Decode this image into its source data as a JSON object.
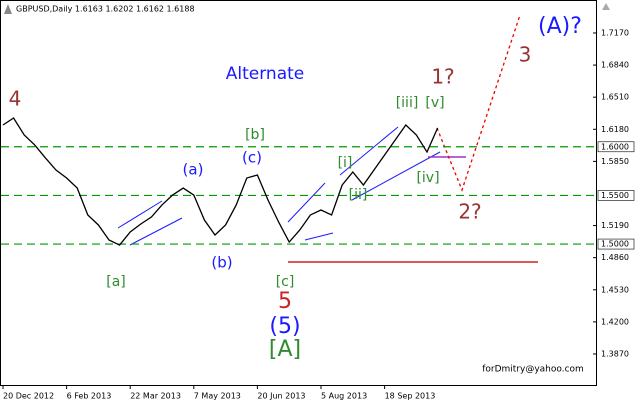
{
  "chart_data": {
    "type": "line",
    "title": "GBPUSD,Daily  1.6163 1.6202 1.6162 1.6188",
    "color": "#000000",
    "categories": [
      "20 Dec 2012",
      null,
      null,
      null,
      null,
      null,
      "6 Feb 2013",
      null,
      null,
      null,
      null,
      null,
      "22 Mar 2013",
      null,
      null,
      null,
      null,
      null,
      "7 May 2013",
      null,
      null,
      null,
      null,
      null,
      "20 Jun 2013",
      null,
      null,
      null,
      null,
      null,
      "5 Aug 2013",
      null,
      null,
      null,
      null,
      null,
      "18 Sep 2013",
      null,
      null,
      null,
      null,
      null
    ],
    "values": [
      1.6224,
      1.6296,
      1.6121,
      1.6018,
      1.5885,
      1.5761,
      1.5679,
      1.5576,
      1.5299,
      1.5196,
      1.5042,
      1.499,
      1.5124,
      1.5206,
      1.5278,
      1.5402,
      1.5504,
      1.5576,
      1.5504,
      1.5247,
      1.5093,
      1.5196,
      1.5402,
      1.5679,
      1.571,
      1.5453,
      1.5227,
      1.5021,
      1.5145,
      1.5299,
      1.535,
      1.5299,
      1.5607,
      1.5741,
      1.5607,
      1.5761,
      1.5916,
      1.607,
      1.6224,
      1.6121,
      1.5946,
      1.6193
    ],
    "ylim": [
      1.3551,
      1.7509
    ],
    "yticks": [
      {
        "value": 1.717,
        "label": "1.7170"
      },
      {
        "value": 1.684,
        "label": "1.6840"
      },
      {
        "value": 1.651,
        "label": "1.6510"
      },
      {
        "value": 1.618,
        "label": "1.6180"
      },
      {
        "value": 1.585,
        "label": "1.5850"
      },
      {
        "value": 1.519,
        "label": "1.5190"
      },
      {
        "value": 1.486,
        "label": "1.4860"
      },
      {
        "value": 1.453,
        "label": "1.4530"
      },
      {
        "value": 1.42,
        "label": "1.4200"
      },
      {
        "value": 1.387,
        "label": "1.3870"
      }
    ],
    "levels": [
      {
        "value": 1.6,
        "label": "1.6000"
      },
      {
        "value": 1.55,
        "label": "1.5500"
      },
      {
        "value": 1.5,
        "label": "1.5000"
      }
    ],
    "level_color": "#009900",
    "support": 1.4816,
    "annotations": [
      {
        "text": "4",
        "color": "#993333"
      },
      {
        "text": "(a)",
        "color": "#1a1aff"
      },
      {
        "text": "(b)",
        "color": "#1a1aff"
      },
      {
        "text": "(c)",
        "color": "#1a1aff"
      },
      {
        "text": "[a]",
        "color": "#2e8b2e"
      },
      {
        "text": "[b]",
        "color": "#2e8b2e"
      },
      {
        "text": "[c]",
        "color": "#2e8b2e"
      },
      {
        "text": "5",
        "color": "#cc2222"
      },
      {
        "text": "(5)",
        "color": "#1a1aff"
      },
      {
        "text": "[A]",
        "color": "#2e8b2e"
      },
      {
        "text": "Alternate",
        "color": "#1a1aff"
      },
      {
        "text": "[i]",
        "color": "#2e8b2e"
      },
      {
        "text": "[ii]",
        "color": "#2e8b2e"
      },
      {
        "text": "[iii]",
        "color": "#2e8b2e"
      },
      {
        "text": "[v]",
        "color": "#2e8b2e"
      },
      {
        "text": "[iv]",
        "color": "#2e8b2e"
      },
      {
        "text": "1?",
        "color": "#993333"
      },
      {
        "text": "2?",
        "color": "#993333"
      },
      {
        "text": "3",
        "color": "#993333"
      },
      {
        "text": "(A)?",
        "color": "#1a1aff"
      },
      {
        "text": "forDmitry@yahoo.com",
        "color": "#000000"
      }
    ]
  }
}
